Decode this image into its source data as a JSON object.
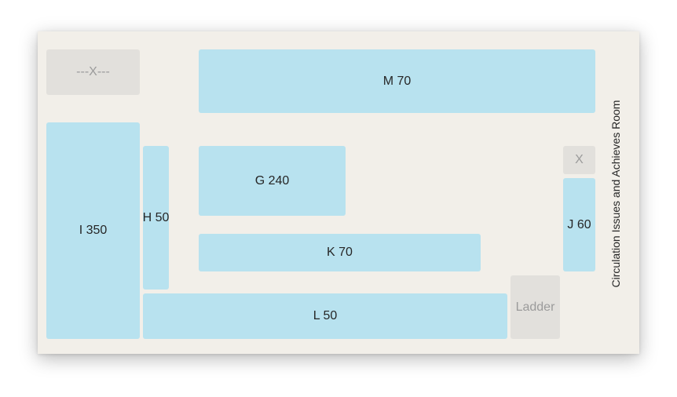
{
  "room_label": "Circulation Issues and Achieves Room",
  "shelves": {
    "M": "M 70",
    "G": "G 240",
    "K": "K 70",
    "L": "L 50",
    "I": "I 350",
    "H": "H 50",
    "J": "J 60"
  },
  "fixtures": {
    "top_left": "---X---",
    "x": "X",
    "ladder": "Ladder"
  },
  "colors": {
    "shelf": "#b8e2ef",
    "fixture": "#e2e0dc",
    "room": "#f2efe9"
  }
}
